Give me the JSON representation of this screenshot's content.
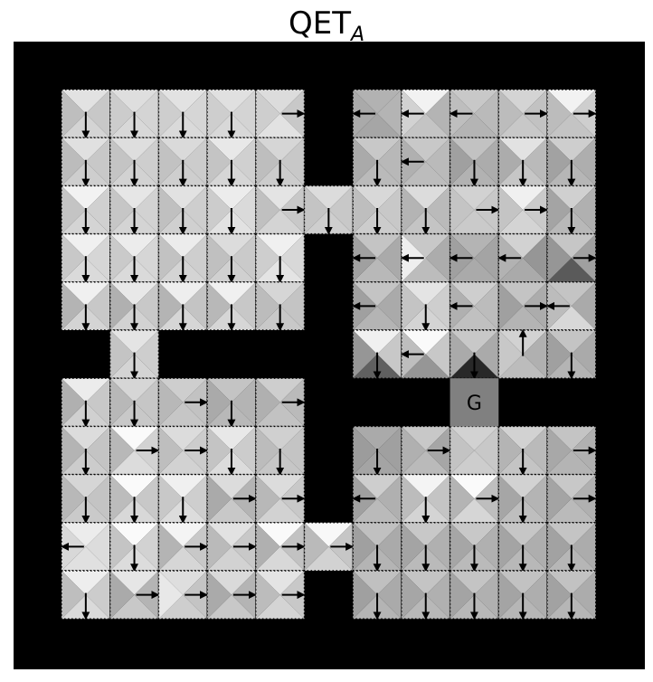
{
  "title": {
    "main": "QET",
    "sub": "A"
  },
  "goal_label": "G",
  "grid": {
    "rows": 13,
    "cols": 13,
    "goal": [
      7,
      9
    ],
    "free": [
      [
        1,
        1
      ],
      [
        1,
        2
      ],
      [
        1,
        3
      ],
      [
        1,
        4
      ],
      [
        1,
        5
      ],
      [
        1,
        7
      ],
      [
        1,
        8
      ],
      [
        1,
        9
      ],
      [
        1,
        10
      ],
      [
        1,
        11
      ],
      [
        2,
        1
      ],
      [
        2,
        2
      ],
      [
        2,
        3
      ],
      [
        2,
        4
      ],
      [
        2,
        5
      ],
      [
        2,
        7
      ],
      [
        2,
        8
      ],
      [
        2,
        9
      ],
      [
        2,
        10
      ],
      [
        2,
        11
      ],
      [
        3,
        1
      ],
      [
        3,
        2
      ],
      [
        3,
        3
      ],
      [
        3,
        4
      ],
      [
        3,
        5
      ],
      [
        3,
        6
      ],
      [
        3,
        7
      ],
      [
        3,
        8
      ],
      [
        3,
        9
      ],
      [
        3,
        10
      ],
      [
        3,
        11
      ],
      [
        4,
        1
      ],
      [
        4,
        2
      ],
      [
        4,
        3
      ],
      [
        4,
        4
      ],
      [
        4,
        5
      ],
      [
        4,
        7
      ],
      [
        4,
        8
      ],
      [
        4,
        9
      ],
      [
        4,
        10
      ],
      [
        4,
        11
      ],
      [
        5,
        1
      ],
      [
        5,
        2
      ],
      [
        5,
        3
      ],
      [
        5,
        4
      ],
      [
        5,
        5
      ],
      [
        5,
        7
      ],
      [
        5,
        8
      ],
      [
        5,
        9
      ],
      [
        5,
        10
      ],
      [
        5,
        11
      ],
      [
        6,
        2
      ],
      [
        6,
        7
      ],
      [
        6,
        8
      ],
      [
        6,
        9
      ],
      [
        6,
        10
      ],
      [
        6,
        11
      ],
      [
        7,
        1
      ],
      [
        7,
        2
      ],
      [
        7,
        3
      ],
      [
        7,
        4
      ],
      [
        7,
        5
      ],
      [
        8,
        1
      ],
      [
        8,
        2
      ],
      [
        8,
        3
      ],
      [
        8,
        4
      ],
      [
        8,
        5
      ],
      [
        8,
        7
      ],
      [
        8,
        8
      ],
      [
        8,
        9
      ],
      [
        8,
        10
      ],
      [
        8,
        11
      ],
      [
        9,
        1
      ],
      [
        9,
        2
      ],
      [
        9,
        3
      ],
      [
        9,
        4
      ],
      [
        9,
        5
      ],
      [
        9,
        7
      ],
      [
        9,
        8
      ],
      [
        9,
        9
      ],
      [
        9,
        10
      ],
      [
        9,
        11
      ],
      [
        10,
        1
      ],
      [
        10,
        2
      ],
      [
        10,
        3
      ],
      [
        10,
        4
      ],
      [
        10,
        5
      ],
      [
        10,
        6
      ],
      [
        10,
        7
      ],
      [
        10,
        8
      ],
      [
        10,
        9
      ],
      [
        10,
        10
      ],
      [
        10,
        11
      ],
      [
        11,
        1
      ],
      [
        11,
        2
      ],
      [
        11,
        3
      ],
      [
        11,
        4
      ],
      [
        11,
        5
      ],
      [
        11,
        7
      ],
      [
        11,
        8
      ],
      [
        11,
        9
      ],
      [
        11,
        10
      ],
      [
        11,
        11
      ]
    ],
    "arrows": {
      "1,1": "down",
      "1,2": "down",
      "1,3": "down",
      "1,4": "down",
      "1,5": "right",
      "1,7": "left",
      "1,8": "left",
      "1,9": "left",
      "1,10": "right",
      "1,11": "right",
      "2,1": "down",
      "2,2": "down",
      "2,3": "down",
      "2,4": "down",
      "2,5": "down",
      "2,7": "down",
      "2,8": "left",
      "2,9": "down",
      "2,10": "down",
      "2,11": "down",
      "3,1": "down",
      "3,2": "down",
      "3,3": "down",
      "3,4": "down",
      "3,5": "right",
      "3,6": "down",
      "3,7": "down",
      "3,8": "down",
      "3,9": "right",
      "3,10": "right",
      "3,11": "down",
      "4,1": "down",
      "4,2": "down",
      "4,3": "down",
      "4,4": "down",
      "4,5": "down",
      "4,7": "left",
      "4,8": "left",
      "4,9": "left",
      "4,10": "left",
      "4,11": "right",
      "5,1": "down",
      "5,2": "down",
      "5,3": "down",
      "5,4": "down",
      "5,5": "down",
      "5,7": "left",
      "5,8": "down",
      "5,9": "left",
      "5,10": "right",
      "5,11": "left",
      "6,2": "down",
      "6,7": "down",
      "6,8": "left",
      "6,9": "down",
      "6,10": "up",
      "6,11": "down",
      "7,1": "down",
      "7,2": "down",
      "7,3": "right",
      "7,4": "down",
      "7,5": "right",
      "8,1": "down",
      "8,2": "right",
      "8,3": "right",
      "8,4": "down",
      "8,5": "down",
      "8,7": "down",
      "8,8": "right",
      "8,10": "down",
      "8,11": "right",
      "9,1": "down",
      "9,2": "down",
      "9,3": "down",
      "9,4": "right",
      "9,5": "right",
      "9,7": "left",
      "9,8": "down",
      "9,9": "right",
      "9,10": "down",
      "9,11": "right",
      "10,1": "left",
      "10,2": "down",
      "10,3": "right",
      "10,4": "right",
      "10,5": "right",
      "10,6": "right",
      "10,7": "down",
      "10,8": "down",
      "10,9": "down",
      "10,10": "down",
      "10,11": "down",
      "11,1": "down",
      "11,2": "right",
      "11,3": "right",
      "11,4": "right",
      "11,5": "right",
      "11,7": "down",
      "11,8": "down",
      "11,9": "down",
      "11,10": "down",
      "11,11": "down"
    },
    "shades": {
      "1,1": [
        226,
        200,
        212,
        190
      ],
      "1,2": [
        222,
        212,
        216,
        204
      ],
      "1,3": [
        226,
        214,
        218,
        206
      ],
      "1,4": [
        224,
        212,
        216,
        206
      ],
      "1,5": [
        220,
        200,
        226,
        206
      ],
      "1,7": [
        178,
        180,
        166,
        170
      ],
      "1,8": [
        242,
        180,
        196,
        210
      ],
      "1,9": [
        200,
        186,
        180,
        190
      ],
      "1,10": [
        212,
        194,
        200,
        188
      ],
      "1,11": [
        242,
        206,
        196,
        188
      ],
      "2,1": [
        224,
        200,
        206,
        188
      ],
      "2,2": [
        222,
        206,
        210,
        196
      ],
      "2,3": [
        218,
        204,
        206,
        194
      ],
      "2,4": [
        232,
        208,
        214,
        196
      ],
      "2,5": [
        214,
        200,
        204,
        190
      ],
      "2,7": [
        200,
        184,
        186,
        170
      ],
      "2,8": [
        200,
        186,
        188,
        176
      ],
      "2,9": [
        194,
        172,
        178,
        160
      ],
      "2,10": [
        226,
        186,
        198,
        172
      ],
      "2,11": [
        206,
        174,
        182,
        162
      ],
      "3,1": [
        242,
        208,
        212,
        196
      ],
      "3,2": [
        230,
        210,
        212,
        198
      ],
      "3,3": [
        226,
        206,
        208,
        192
      ],
      "3,4": [
        236,
        218,
        226,
        204
      ],
      "3,5": [
        228,
        200,
        212,
        192
      ],
      "3,6": [
        220,
        200,
        206,
        196
      ],
      "3,7": [
        216,
        200,
        204,
        190
      ],
      "3,8": [
        220,
        186,
        196,
        180
      ],
      "3,9": [
        210,
        200,
        202,
        196
      ],
      "3,10": [
        240,
        202,
        212,
        196
      ],
      "3,11": [
        208,
        176,
        184,
        164
      ],
      "4,1": [
        240,
        214,
        218,
        200
      ],
      "4,2": [
        236,
        214,
        218,
        202
      ],
      "4,3": [
        236,
        206,
        212,
        194
      ],
      "4,4": [
        220,
        202,
        208,
        192
      ],
      "4,5": [
        240,
        216,
        228,
        206
      ],
      "4,7": [
        196,
        170,
        184,
        160
      ],
      "4,8": [
        200,
        172,
        188,
        238
      ],
      "4,9": [
        180,
        164,
        170,
        160
      ],
      "4,10": [
        210,
        150,
        170,
        178
      ],
      "4,11": [
        198,
        160,
        90,
        150
      ],
      "5,1": [
        240,
        200,
        212,
        180
      ],
      "5,2": [
        232,
        200,
        210,
        176
      ],
      "5,3": [
        238,
        196,
        214,
        180
      ],
      "5,4": [
        240,
        200,
        214,
        184
      ],
      "5,5": [
        214,
        196,
        200,
        188
      ],
      "5,7": [
        196,
        170,
        180,
        160
      ],
      "5,8": [
        228,
        206,
        212,
        196
      ],
      "5,9": [
        206,
        188,
        192,
        176
      ],
      "5,10": [
        196,
        172,
        180,
        160
      ],
      "5,11": [
        196,
        170,
        216,
        188
      ],
      "6,2": [
        228,
        206,
        212,
        196
      ],
      "6,7": [
        240,
        200,
        96,
        150
      ],
      "6,8": [
        250,
        200,
        150,
        190
      ],
      "6,9": [
        200,
        170,
        40,
        170
      ],
      "6,10": [
        210,
        176,
        188,
        200
      ],
      "6,11": [
        196,
        170,
        180,
        160
      ],
      "7,1": [
        236,
        200,
        208,
        176
      ],
      "7,2": [
        214,
        198,
        200,
        184
      ],
      "7,3": [
        206,
        194,
        198,
        184
      ],
      "7,4": [
        196,
        180,
        184,
        170
      ],
      "7,5": [
        206,
        186,
        194,
        176
      ],
      "8,1": [
        220,
        196,
        204,
        180
      ],
      "8,2": [
        250,
        210,
        220,
        184
      ],
      "8,3": [
        220,
        204,
        210,
        190
      ],
      "8,4": [
        232,
        204,
        220,
        196
      ],
      "8,5": [
        208,
        196,
        198,
        188
      ],
      "8,7": [
        170,
        160,
        164,
        156
      ],
      "8,8": [
        200,
        166,
        186,
        176
      ],
      "8,10": [
        210,
        186,
        196,
        180
      ],
      "8,11": [
        196,
        176,
        180,
        168
      ],
      "9,1": [
        214,
        196,
        202,
        184
      ],
      "9,2": [
        250,
        200,
        216,
        188
      ],
      "9,3": [
        240,
        206,
        220,
        200
      ],
      "9,4": [
        220,
        180,
        200,
        170
      ],
      "9,5": [
        220,
        200,
        210,
        184
      ],
      "9,7": [
        206,
        176,
        186,
        160
      ],
      "9,8": [
        244,
        196,
        212,
        188
      ],
      "9,9": [
        250,
        190,
        214,
        180
      ],
      "9,10": [
        210,
        180,
        190,
        166
      ],
      "9,11": [
        200,
        176,
        186,
        164
      ],
      "10,1": [
        236,
        220,
        224,
        216
      ],
      "10,2": [
        250,
        210,
        220,
        196
      ],
      "10,3": [
        244,
        200,
        214,
        180
      ],
      "10,4": [
        226,
        200,
        210,
        186
      ],
      "10,5": [
        250,
        194,
        216,
        176
      ],
      "10,6": [
        248,
        198,
        210,
        186
      ],
      "10,7": [
        192,
        170,
        180,
        160
      ],
      "10,8": [
        200,
        176,
        186,
        164
      ],
      "10,9": [
        200,
        176,
        186,
        166
      ],
      "10,10": [
        198,
        174,
        184,
        164
      ],
      "10,11": [
        196,
        172,
        182,
        162
      ],
      "11,1": [
        238,
        204,
        218,
        190
      ],
      "11,2": [
        230,
        180,
        200,
        170
      ],
      "11,3": [
        222,
        196,
        206,
        232
      ],
      "11,4": [
        218,
        180,
        200,
        170
      ],
      "11,5": [
        228,
        200,
        212,
        188
      ],
      "11,7": [
        192,
        170,
        180,
        160
      ],
      "11,8": [
        196,
        176,
        184,
        166
      ],
      "11,9": [
        196,
        176,
        184,
        164
      ],
      "11,10": [
        194,
        174,
        182,
        164
      ],
      "11,11": [
        194,
        172,
        182,
        162
      ]
    }
  }
}
